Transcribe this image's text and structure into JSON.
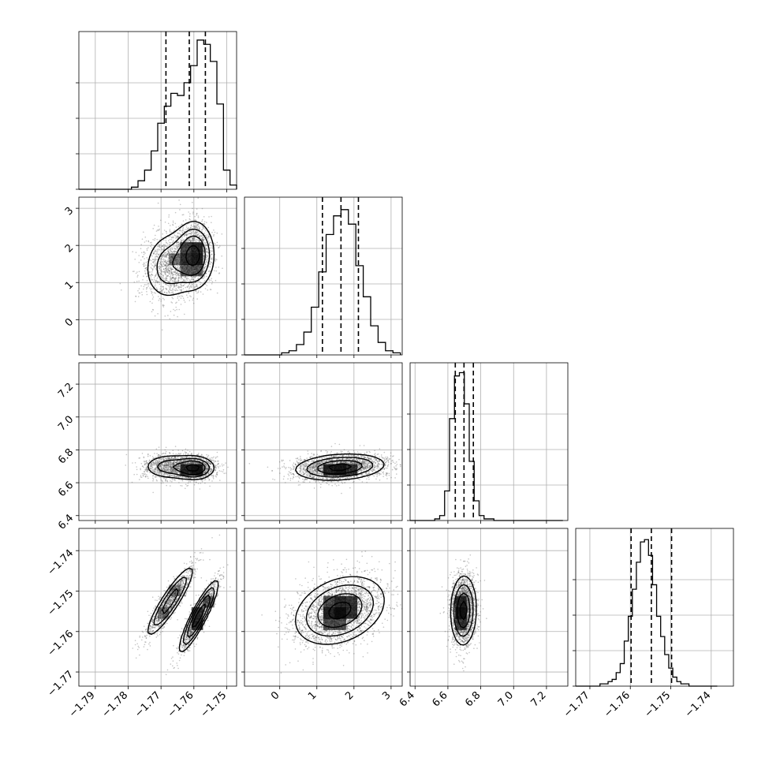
{
  "chart_data": {
    "type": "corner",
    "title": "",
    "parameters": [
      {
        "index": 0,
        "label": "",
        "range": [
          -1.795,
          -1.747
        ],
        "ticks": [
          -1.79,
          -1.78,
          -1.77,
          -1.76,
          -1.75
        ],
        "tick_labels": [
          "−1.79",
          "−1.78",
          "−1.77",
          "−1.76",
          "−1.75"
        ],
        "quantiles": [
          -1.7685,
          -1.7614,
          -1.7565
        ]
      },
      {
        "index": 1,
        "label": "",
        "range": [
          -0.95,
          3.3
        ],
        "ticks": [
          0,
          1,
          2,
          3
        ],
        "tick_labels": [
          "0",
          "1",
          "2",
          "3"
        ],
        "quantiles": [
          1.15,
          1.65,
          2.12
        ]
      },
      {
        "index": 2,
        "label": "",
        "range": [
          6.37,
          7.33
        ],
        "ticks": [
          6.4,
          6.6,
          6.8,
          7.0,
          7.2
        ],
        "tick_labels": [
          "6.4",
          "6.6",
          "6.8",
          "7.0",
          "7.2"
        ],
        "quantiles": [
          6.645,
          6.698,
          6.755
        ]
      },
      {
        "index": 3,
        "label": "",
        "range": [
          -1.7735,
          -1.7345
        ],
        "ticks": [
          -1.77,
          -1.76,
          -1.75,
          -1.74
        ],
        "tick_labels": [
          "−1.77",
          "−1.76",
          "−1.75",
          "−1.74"
        ],
        "quantiles": [
          -1.7598,
          -1.7548,
          -1.7498
        ]
      }
    ],
    "histograms": [
      {
        "param": 0,
        "bin_edges": [
          -1.795,
          -1.793,
          -1.791,
          -1.789,
          -1.787,
          -1.785,
          -1.783,
          -1.781,
          -1.779,
          -1.777,
          -1.775,
          -1.773,
          -1.771,
          -1.769,
          -1.767,
          -1.765,
          -1.763,
          -1.761,
          -1.759,
          -1.757,
          -1.755,
          -1.753,
          -1.751,
          -1.749,
          -1.747
        ],
        "counts": [
          0,
          0,
          0,
          0,
          0,
          0,
          0,
          0,
          1,
          4,
          9,
          18,
          31,
          39,
          45,
          44,
          50,
          58,
          70,
          68,
          60,
          40,
          9,
          2
        ],
        "ylim": [
          0,
          74
        ]
      },
      {
        "param": 1,
        "bin_edges": [
          -0.95,
          -0.75,
          -0.55,
          -0.35,
          -0.15,
          0.05,
          0.25,
          0.45,
          0.65,
          0.85,
          1.05,
          1.25,
          1.45,
          1.65,
          1.85,
          2.05,
          2.25,
          2.45,
          2.65,
          2.85,
          3.05,
          3.25
        ],
        "counts": [
          0,
          0,
          0,
          0,
          0,
          1,
          2,
          5,
          11,
          23,
          40,
          58,
          67,
          70,
          63,
          43,
          28,
          14,
          6,
          2,
          1
        ],
        "ylim": [
          0,
          76
        ]
      },
      {
        "param": 2,
        "bin_edges": [
          6.37,
          6.4,
          6.43,
          6.46,
          6.49,
          6.52,
          6.55,
          6.58,
          6.61,
          6.64,
          6.67,
          6.7,
          6.73,
          6.76,
          6.79,
          6.82,
          6.85,
          6.88,
          6.91,
          6.94,
          6.97,
          7.0,
          7.03,
          7.06,
          7.09,
          7.12,
          7.15,
          7.18,
          7.21,
          7.24,
          7.27,
          7.3
        ],
        "counts": [
          0,
          0,
          0,
          0,
          0,
          1,
          3,
          18,
          62,
          88,
          90,
          71,
          36,
          12,
          3,
          1,
          1,
          0,
          0,
          0,
          0,
          0,
          0,
          0,
          0,
          0,
          0,
          0,
          0,
          0,
          0
        ],
        "ylim": [
          0,
          96
        ]
      },
      {
        "param": 3,
        "bin_edges": [
          -1.7735,
          -1.7725,
          -1.7715,
          -1.7705,
          -1.7695,
          -1.7685,
          -1.7675,
          -1.7665,
          -1.7655,
          -1.7645,
          -1.7635,
          -1.7625,
          -1.7615,
          -1.7605,
          -1.7595,
          -1.7585,
          -1.7575,
          -1.7565,
          -1.7555,
          -1.7545,
          -1.7535,
          -1.7525,
          -1.7515,
          -1.7505,
          -1.7495,
          -1.7485,
          -1.7475,
          -1.7465,
          -1.7455,
          -1.7445,
          -1.7435,
          -1.7425,
          -1.7415,
          -1.7405,
          -1.7395,
          -1.7385
        ],
        "counts": [
          0,
          0,
          0,
          0,
          0,
          0,
          1,
          1,
          2,
          3,
          6,
          10,
          20,
          31,
          43,
          55,
          64,
          65,
          58,
          45,
          31,
          22,
          14,
          8,
          4,
          2,
          1,
          1,
          0,
          0,
          0,
          0,
          0,
          0,
          0
        ],
        "ylim": [
          0,
          70
        ]
      }
    ],
    "joint": [
      {
        "x": 0,
        "y": 1,
        "components": [
          {
            "mean": [
              -1.7672,
              1.45
            ],
            "sd": [
              0.0043,
              0.5
            ],
            "rho": 0.1,
            "weight": 0.45
          },
          {
            "mean": [
              -1.7598,
              1.75
            ],
            "sd": [
              0.003,
              0.45
            ],
            "rho": 0.0,
            "weight": 0.55
          }
        ]
      },
      {
        "x": 0,
        "y": 2,
        "components": [
          {
            "mean": [
              -1.7672,
              6.698
            ],
            "sd": [
              0.0043,
              0.04
            ],
            "rho": 0.0,
            "weight": 0.45
          },
          {
            "mean": [
              -1.7598,
              6.69
            ],
            "sd": [
              0.003,
              0.035
            ],
            "rho": 0.0,
            "weight": 0.55
          }
        ]
      },
      {
        "x": 0,
        "y": 3,
        "components": [
          {
            "mean": [
              -1.7672,
              -1.7525
            ],
            "sd": [
              0.0037,
              0.0045
            ],
            "rho": 0.9,
            "weight": 0.45
          },
          {
            "mean": [
              -1.7585,
              -1.7562
            ],
            "sd": [
              0.0028,
              0.0042
            ],
            "rho": 0.9,
            "weight": 0.55
          }
        ]
      },
      {
        "x": 1,
        "y": 2,
        "components": [
          {
            "mean": [
              1.62,
              6.695
            ],
            "sd": [
              0.6,
              0.04
            ],
            "rho": 0.2,
            "weight": 1.0
          }
        ]
      },
      {
        "x": 1,
        "y": 3,
        "components": [
          {
            "mean": [
              1.62,
              -1.7548
            ],
            "sd": [
              0.6,
              0.0042
            ],
            "rho": 0.3,
            "weight": 1.0
          }
        ]
      },
      {
        "x": 2,
        "y": 3,
        "components": [
          {
            "mean": [
              6.695,
              -1.7548
            ],
            "sd": [
              0.038,
              0.0042
            ],
            "rho": 0.05,
            "weight": 1.0
          }
        ]
      }
    ],
    "contour_levels_sigma": [
      0.5,
      1.0,
      1.5,
      2.0
    ],
    "grid": true,
    "colors": {
      "line": "#000000",
      "grid": "#b0b0b0",
      "points": "#555555",
      "density": "#000000"
    }
  }
}
